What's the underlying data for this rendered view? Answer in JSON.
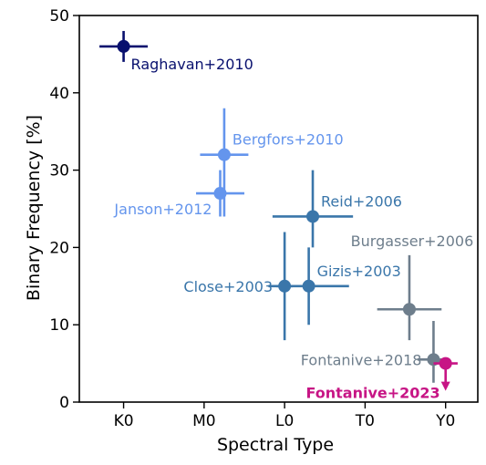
{
  "chart_data": {
    "type": "scatter",
    "title": "",
    "xlabel": "Spectral Type",
    "ylabel": "Binary Frequency [%]",
    "x_ticks": [
      {
        "label": "K0",
        "value": 0
      },
      {
        "label": "M0",
        "value": 10
      },
      {
        "label": "L0",
        "value": 20
      },
      {
        "label": "T0",
        "value": 30
      },
      {
        "label": "Y0",
        "value": 40
      }
    ],
    "y_ticks": [
      0,
      10,
      20,
      30,
      40,
      50
    ],
    "xlim": [
      -5.5,
      44
    ],
    "ylim": [
      0,
      50
    ],
    "grid": false,
    "legend": "none (labels placed next to points)",
    "points": [
      {
        "name": "Raghavan+2010",
        "x": 0,
        "xerr": 3,
        "y": 46,
        "yerr_low": 2,
        "yerr_high": 2,
        "color": "#08106e",
        "label_side": "below-right",
        "bold": false,
        "upper_limit": false
      },
      {
        "name": "Bergfors+2010",
        "x": 12.5,
        "xerr": 3,
        "y": 32,
        "yerr_low": 8,
        "yerr_high": 6,
        "color": "#6495ed",
        "label_side": "upper-right",
        "bold": false,
        "upper_limit": false
      },
      {
        "name": "Janson+2012",
        "x": 12,
        "xerr": 3,
        "y": 27,
        "yerr_low": 3,
        "yerr_high": 3,
        "color": "#6495ed",
        "label_side": "lower-left",
        "bold": false,
        "upper_limit": false
      },
      {
        "name": "Reid+2006",
        "x": 23.5,
        "xerr": 5,
        "y": 24,
        "yerr_low": 4,
        "yerr_high": 6,
        "color": "#3a76aa",
        "label_side": "upper-right",
        "bold": false,
        "upper_limit": false
      },
      {
        "name": "Close+2003",
        "x": 20,
        "xerr": 1,
        "y": 15,
        "yerr_low": 7,
        "yerr_high": 7,
        "color": "#3a76aa",
        "label_side": "left",
        "bold": false,
        "upper_limit": false
      },
      {
        "name": "Gizis+2003",
        "x": 23,
        "xerr": 5,
        "y": 15,
        "yerr_low": 5,
        "yerr_high": 5,
        "color": "#3a76aa",
        "label_side": "upper-right",
        "bold": false,
        "upper_limit": false
      },
      {
        "name": "Burgasser+2006",
        "x": 35.5,
        "xerr": 4,
        "y": 12,
        "yerr_low": 4,
        "yerr_high": 7,
        "color": "#6e7e8c",
        "label_side": "upper",
        "bold": false,
        "upper_limit": false
      },
      {
        "name": "Fontanive+2018",
        "x": 38.5,
        "xerr": 2,
        "y": 5.5,
        "yerr_low": 3,
        "yerr_high": 5,
        "color": "#6e7e8c",
        "label_side": "left",
        "bold": false,
        "upper_limit": false
      },
      {
        "name": "Fontanive+2023",
        "x": 40,
        "xerr": 1.5,
        "y": 5,
        "yerr_low": 0,
        "yerr_high": 0,
        "color": "#c71585",
        "label_side": "below-left",
        "bold": true,
        "upper_limit": true
      }
    ]
  }
}
